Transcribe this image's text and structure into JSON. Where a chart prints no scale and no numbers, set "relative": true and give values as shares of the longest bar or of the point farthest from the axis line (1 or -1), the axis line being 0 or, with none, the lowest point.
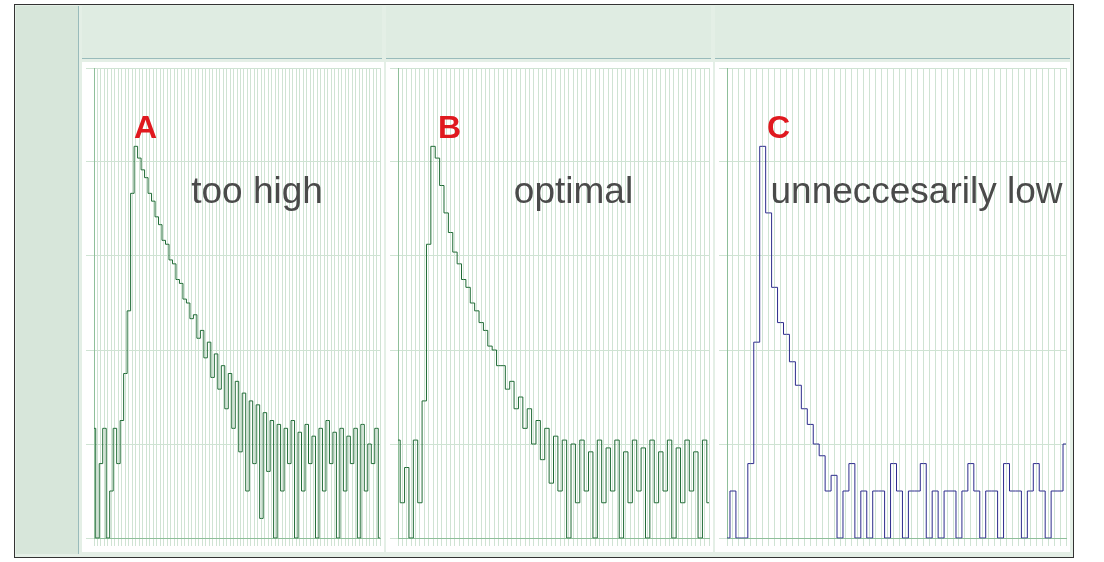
{
  "chart_data": [
    {
      "type": "step",
      "relative": true,
      "grid": true,
      "tick_labels": false,
      "legend": false,
      "annotations": [
        "A",
        "too high"
      ],
      "categories": [
        null,
        null,
        null,
        null,
        null,
        null,
        null,
        null,
        null,
        null,
        null,
        null,
        null,
        null,
        null,
        null,
        null,
        null,
        null,
        null,
        null,
        null,
        null,
        null,
        null,
        null,
        null,
        null,
        null,
        null,
        null,
        null,
        null,
        null,
        null,
        null,
        null,
        null,
        null,
        null,
        null,
        null,
        null,
        null,
        null,
        null,
        null,
        null,
        null,
        null,
        null,
        null,
        null,
        null,
        null,
        null,
        null,
        null,
        null,
        null,
        null,
        null,
        null,
        null,
        null,
        null,
        null,
        null,
        null,
        null,
        null,
        null,
        null,
        null,
        null,
        null,
        null,
        null,
        null,
        null,
        null,
        null,
        null
      ],
      "series": [
        {
          "color": "#1f6b35",
          "values": [
            0.28,
            0,
            0.19,
            0.28,
            0,
            0.12,
            0.28,
            0.19,
            0.3,
            0.42,
            0.58,
            0.88,
            1.0,
            0.97,
            0.94,
            0.92,
            0.88,
            0.86,
            0.82,
            0.8,
            0.76,
            0.75,
            0.71,
            0.7,
            0.66,
            0.65,
            0.61,
            0.6,
            0.56,
            0.57,
            0.51,
            0.53,
            0.46,
            0.5,
            0.41,
            0.47,
            0.38,
            0.44,
            0.33,
            0.42,
            0.28,
            0.4,
            0.22,
            0.37,
            0.12,
            0.35,
            0.19,
            0.34,
            0.05,
            0.32,
            0.17,
            0.3,
            0,
            0.29,
            0.12,
            0.28,
            0.19,
            0.3,
            0,
            0.27,
            0.12,
            0.29,
            0.19,
            0.26,
            0,
            0.28,
            0.12,
            0.3,
            0.19,
            0.27,
            0,
            0.28,
            0.12,
            0.26,
            0.19,
            0.28,
            0,
            0.29,
            0.12,
            0.24,
            0.19,
            0.28,
            0
          ]
        }
      ]
    },
    {
      "type": "step",
      "relative": true,
      "grid": true,
      "tick_labels": false,
      "legend": false,
      "annotations": [
        "B",
        "optimal"
      ],
      "categories": [
        null,
        null,
        null,
        null,
        null,
        null,
        null,
        null,
        null,
        null,
        null,
        null,
        null,
        null,
        null,
        null,
        null,
        null,
        null,
        null,
        null,
        null,
        null,
        null,
        null,
        null,
        null,
        null,
        null,
        null,
        null,
        null,
        null,
        null,
        null,
        null,
        null,
        null,
        null,
        null,
        null,
        null,
        null,
        null,
        null,
        null,
        null,
        null,
        null,
        null,
        null,
        null,
        null,
        null,
        null,
        null,
        null,
        null,
        null,
        null,
        null,
        null,
        null,
        null,
        null,
        null,
        null,
        null,
        null,
        null,
        null,
        null
      ],
      "series": [
        {
          "color": "#1f6b35",
          "values": [
            0.25,
            0.09,
            0.18,
            0,
            0.25,
            0.09,
            0.35,
            0.75,
            1.0,
            0.97,
            0.9,
            0.83,
            0.78,
            0.73,
            0.7,
            0.66,
            0.64,
            0.6,
            0.58,
            0.55,
            0.53,
            0.49,
            0.48,
            0.44,
            0.44,
            0.38,
            0.4,
            0.33,
            0.36,
            0.28,
            0.33,
            0.24,
            0.3,
            0.2,
            0.28,
            0.14,
            0.26,
            0.12,
            0.25,
            0,
            0.24,
            0.09,
            0.25,
            0.12,
            0.22,
            0,
            0.25,
            0.09,
            0.23,
            0.12,
            0.25,
            0,
            0.22,
            0.09,
            0.25,
            0.12,
            0.23,
            0,
            0.25,
            0.09,
            0.22,
            0.12,
            0.25,
            0,
            0.23,
            0.09,
            0.25,
            0.12,
            0.22,
            0,
            0.25,
            0.09
          ]
        }
      ]
    },
    {
      "type": "step",
      "relative": true,
      "grid": true,
      "tick_labels": false,
      "legend": false,
      "annotations": [
        "C",
        "unneccesarily low"
      ],
      "categories": [
        null,
        null,
        null,
        null,
        null,
        null,
        null,
        null,
        null,
        null,
        null,
        null,
        null,
        null,
        null,
        null,
        null,
        null,
        null,
        null,
        null,
        null,
        null,
        null,
        null,
        null,
        null,
        null,
        null,
        null,
        null,
        null,
        null,
        null,
        null,
        null,
        null,
        null,
        null,
        null,
        null,
        null,
        null,
        null,
        null,
        null,
        null,
        null,
        null,
        null,
        null,
        null,
        null,
        null,
        null,
        null,
        null,
        null
      ],
      "series": [
        {
          "color": "#2c2c8c",
          "values": [
            0,
            0.12,
            0,
            0,
            0.19,
            0.5,
            1.0,
            0.83,
            0.64,
            0.55,
            0.52,
            0.45,
            0.39,
            0.33,
            0.29,
            0.24,
            0.21,
            0.12,
            0.16,
            0,
            0.12,
            0.19,
            0,
            0.12,
            0,
            0.12,
            0.12,
            0,
            0.19,
            0.12,
            0,
            0.12,
            0.12,
            0.19,
            0,
            0.12,
            0,
            0.12,
            0.12,
            0,
            0.12,
            0.19,
            0.12,
            0,
            0.12,
            0.12,
            0,
            0.19,
            0.12,
            0.12,
            0,
            0.12,
            0.19,
            0.12,
            0,
            0.12,
            0.12,
            0.24
          ]
        }
      ]
    }
  ]
}
